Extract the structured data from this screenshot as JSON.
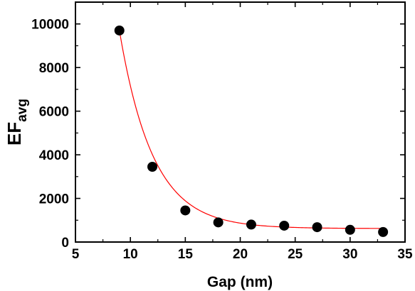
{
  "chart_data": {
    "type": "scatter",
    "xlabel": "Gap (nm)",
    "ylabel": {
      "main": "EF",
      "subscript": "avg"
    },
    "xlim": [
      5,
      35
    ],
    "ylim": [
      0,
      11000
    ],
    "xticks": [
      5,
      10,
      15,
      20,
      25,
      30,
      35
    ],
    "yticks": [
      0,
      2000,
      4000,
      6000,
      8000,
      10000
    ],
    "xtick_labels": [
      "5",
      "10",
      "15",
      "20",
      "25",
      "30",
      "35"
    ],
    "ytick_labels": [
      "0",
      "2000",
      "4000",
      "6000",
      "8000",
      "10000"
    ],
    "grid": false,
    "series": [
      {
        "kind": "points",
        "color": "#000000",
        "x": [
          9,
          12,
          15,
          18,
          21,
          24,
          27,
          30,
          33
        ],
        "y": [
          9700,
          3450,
          1450,
          900,
          800,
          750,
          680,
          560,
          460
        ]
      },
      {
        "kind": "fit-line",
        "color": "#ff0000",
        "model": "exponential-decay",
        "x_range": [
          9,
          33
        ],
        "offset": 620,
        "amplitude": 9080,
        "decay": 3.05
      }
    ]
  }
}
